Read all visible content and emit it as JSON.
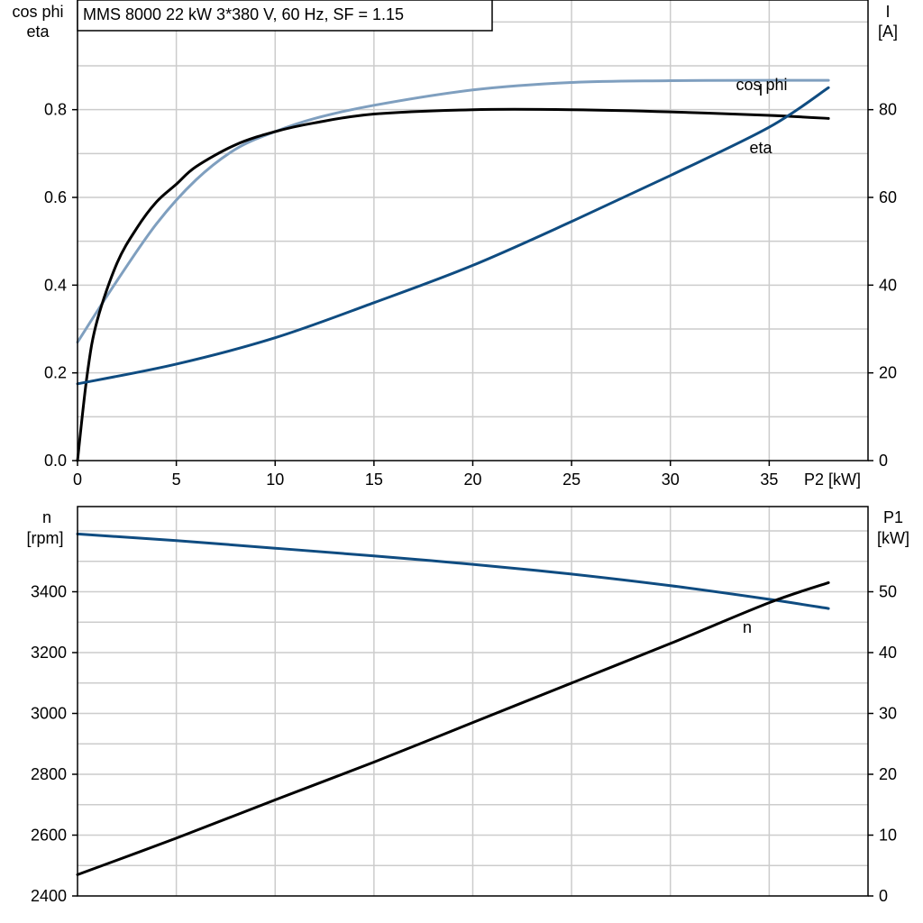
{
  "title": "MMS 8000   22 kW   3*380 V, 60 Hz, SF = 1.15",
  "colors": {
    "cos_phi": "#7f9fbf",
    "eta": "#000000",
    "I": "#0f4c81",
    "n": "#0f4c81",
    "P1": "#000000"
  },
  "chart_data": [
    {
      "type": "line",
      "x_axis": {
        "label": "P2 [kW]",
        "range": [
          0,
          40
        ],
        "ticks": [
          0,
          5,
          10,
          15,
          20,
          25,
          30,
          35
        ]
      },
      "y_axis_left": {
        "label_line1": "cos phi",
        "label_line2": "eta",
        "range": [
          0,
          1.05
        ],
        "ticks": [
          "0.0",
          "0.2",
          "0.4",
          "0.6",
          "0.8"
        ]
      },
      "y_axis_right": {
        "label_line1": "I",
        "label_line2": "[A]",
        "range": [
          0,
          105
        ],
        "ticks": [
          "0",
          "20",
          "40",
          "60",
          "80"
        ]
      },
      "grid": true,
      "series": [
        {
          "name": "cos phi",
          "axis": "left",
          "x": [
            0,
            2,
            4,
            6,
            8,
            10,
            12,
            15,
            20,
            25,
            30,
            35,
            38
          ],
          "y": [
            0.27,
            0.41,
            0.54,
            0.64,
            0.71,
            0.75,
            0.78,
            0.81,
            0.845,
            0.862,
            0.866,
            0.867,
            0.867
          ]
        },
        {
          "name": "eta",
          "axis": "left",
          "x": [
            0,
            0.5,
            1,
            2,
            3,
            4,
            5,
            6,
            8,
            10,
            12,
            15,
            20,
            25,
            30,
            35,
            38
          ],
          "y": [
            0,
            0.2,
            0.32,
            0.45,
            0.53,
            0.59,
            0.63,
            0.67,
            0.72,
            0.75,
            0.77,
            0.79,
            0.8,
            0.8,
            0.795,
            0.787,
            0.78
          ]
        },
        {
          "name": "I",
          "axis": "right",
          "x": [
            0,
            5,
            10,
            15,
            20,
            25,
            30,
            35,
            38
          ],
          "y": [
            17.5,
            22,
            28,
            36,
            44.5,
            54.5,
            65,
            76,
            85
          ]
        }
      ]
    },
    {
      "type": "line",
      "x_axis": {
        "range": [
          0,
          40
        ]
      },
      "y_axis_left": {
        "label_line1": "n",
        "label_line2": "[rpm]",
        "range": [
          2400,
          3680
        ],
        "ticks": [
          "2400",
          "2600",
          "2800",
          "3000",
          "3200",
          "3400"
        ]
      },
      "y_axis_right": {
        "label_line1": "P1",
        "label_line2": "[kW]",
        "range": [
          0,
          64
        ],
        "ticks": [
          "0",
          "10",
          "20",
          "30",
          "40",
          "50"
        ]
      },
      "grid": true,
      "series": [
        {
          "name": "n",
          "axis": "left",
          "x": [
            0,
            5,
            10,
            15,
            20,
            25,
            30,
            35,
            38
          ],
          "y": [
            3590,
            3568,
            3543,
            3518,
            3490,
            3458,
            3420,
            3375,
            3345
          ]
        },
        {
          "axis": "right",
          "x": [
            0,
            5,
            10,
            15,
            20,
            25,
            30,
            35,
            38
          ],
          "y": [
            3.5,
            9.5,
            15.8,
            22,
            28.5,
            35,
            41.5,
            48.2,
            51.5
          ]
        }
      ]
    }
  ]
}
